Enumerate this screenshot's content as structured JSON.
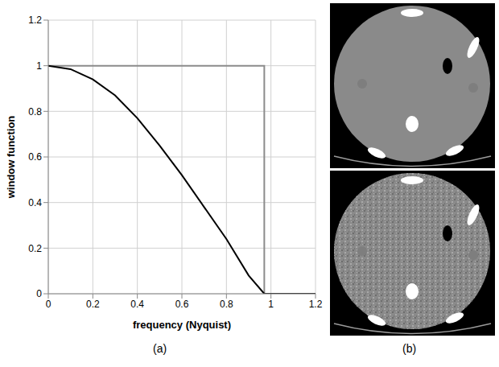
{
  "chart_data": {
    "type": "line",
    "x_label": "frequency (Nyquist)",
    "y_label": "window function",
    "caption": "(a)",
    "xlim": [
      0,
      1.2
    ],
    "xticks": [
      0,
      0.2,
      0.4,
      0.6,
      0.8,
      1,
      1.2
    ],
    "ylim": [
      0,
      1.2
    ],
    "yticks": [
      0,
      0.2,
      0.4,
      0.6,
      0.8,
      1,
      1.2
    ],
    "grid": true,
    "series": [
      {
        "color": "#8c8c8c",
        "x": [
          0,
          0.97,
          0.97,
          1.2
        ],
        "values": [
          1,
          1,
          0,
          0
        ]
      },
      {
        "color": "#000000",
        "x": [
          0,
          0.1,
          0.2,
          0.3,
          0.4,
          0.5,
          0.6,
          0.7,
          0.8,
          0.9,
          0.97,
          1.0,
          1.2
        ],
        "values": [
          1,
          0.985,
          0.94,
          0.87,
          0.77,
          0.65,
          0.52,
          0.38,
          0.24,
          0.08,
          0,
          0,
          0
        ]
      }
    ]
  },
  "images": {
    "caption": "(b)"
  }
}
